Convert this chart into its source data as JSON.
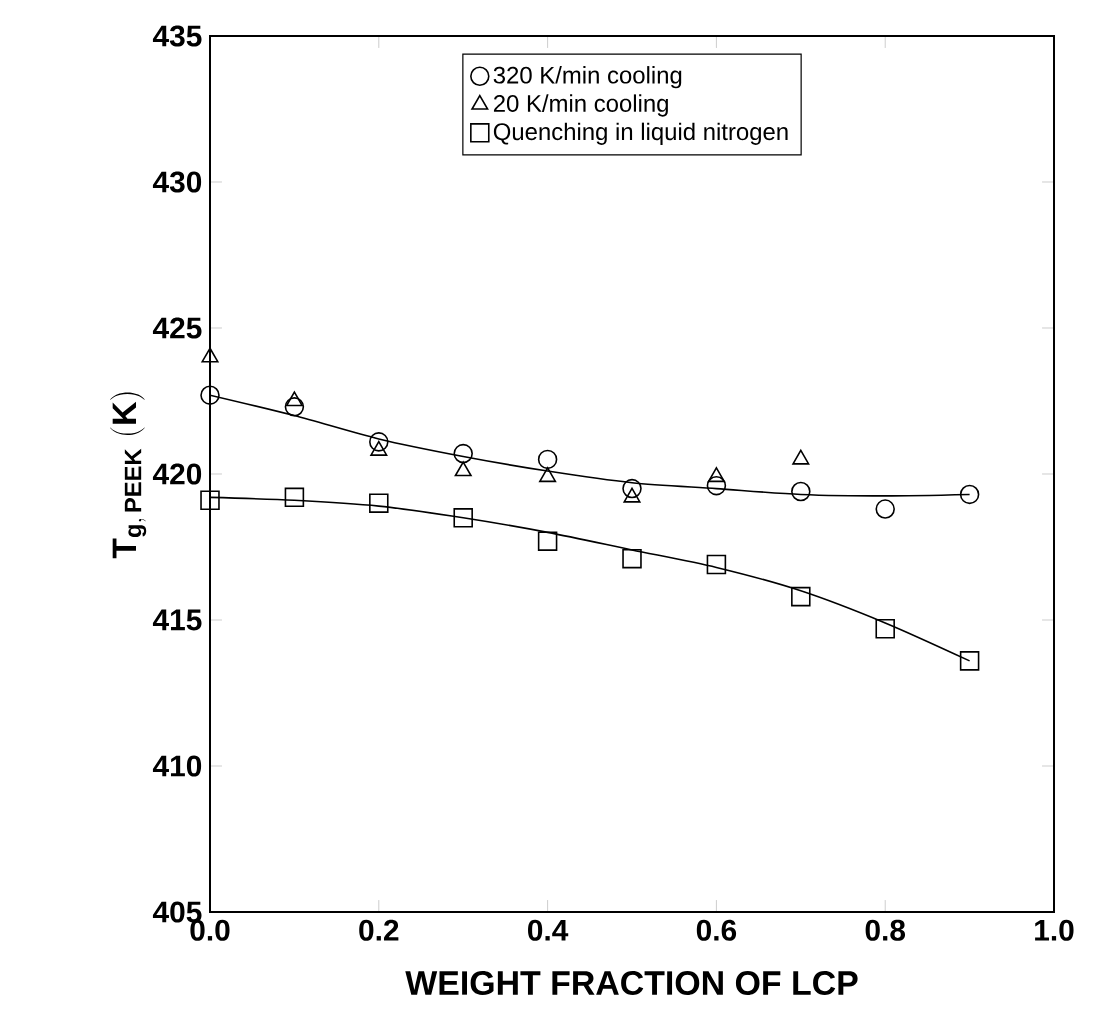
{
  "chart_data": {
    "type": "scatter",
    "xlabel": "WEIGHT FRACTION OF LCP",
    "ylabel": "\\mathbf{T}_{\\mathbf{g,\\,PEEK}}\\ \\mathbf{(K)}",
    "x": [
      0,
      0.1,
      0.2,
      0.3,
      0.4,
      0.5,
      0.6,
      0.7,
      0.8,
      0.9
    ],
    "series": [
      {
        "name": "320 K/min cooling",
        "color": "#000000",
        "marker": "circle",
        "values": [
          422.7,
          422.3,
          421.1,
          420.7,
          420.5,
          419.5,
          419.6,
          419.4,
          418.8,
          419.3
        ]
      },
      {
        "name": "20 K/min cooling",
        "color": "#000000",
        "marker": "triangle",
        "values": [
          424.0,
          422.5,
          420.8,
          420.1,
          419.9,
          419.2,
          419.9,
          420.5,
          null,
          null
        ]
      },
      {
        "name": "Quenching in liquid nitrogen",
        "color": "#000000",
        "marker": "square",
        "values": [
          419.1,
          419.2,
          419.0,
          418.5,
          417.7,
          417.1,
          416.9,
          415.8,
          414.7,
          413.6
        ]
      },
      {
        "type": "line",
        "color": "#000000",
        "marker": "none",
        "values": [
          422.7,
          422.0,
          421.2,
          420.6,
          420.1,
          419.7,
          419.5,
          419.3,
          419.25,
          419.3
        ]
      },
      {
        "type": "line",
        "color": "#000000",
        "marker": "none",
        "values": [
          419.2,
          419.1,
          418.9,
          418.5,
          418.0,
          417.4,
          416.8,
          416.0,
          414.9,
          413.6
        ]
      }
    ],
    "xlim": [
      0,
      1
    ],
    "ylim": [
      405,
      435
    ],
    "xticks": [
      {
        "value": 0,
        "label": "0.0"
      },
      {
        "value": 0.2,
        "label": "0.2"
      },
      {
        "value": 0.4,
        "label": "0.4"
      },
      {
        "value": 0.6,
        "label": "0.6"
      },
      {
        "value": 0.8,
        "label": "0.8"
      },
      {
        "value": 1,
        "label": "1.0"
      }
    ],
    "yticks": [
      405,
      410,
      415,
      420,
      425,
      430,
      435
    ],
    "legend": "top",
    "grid": false
  }
}
